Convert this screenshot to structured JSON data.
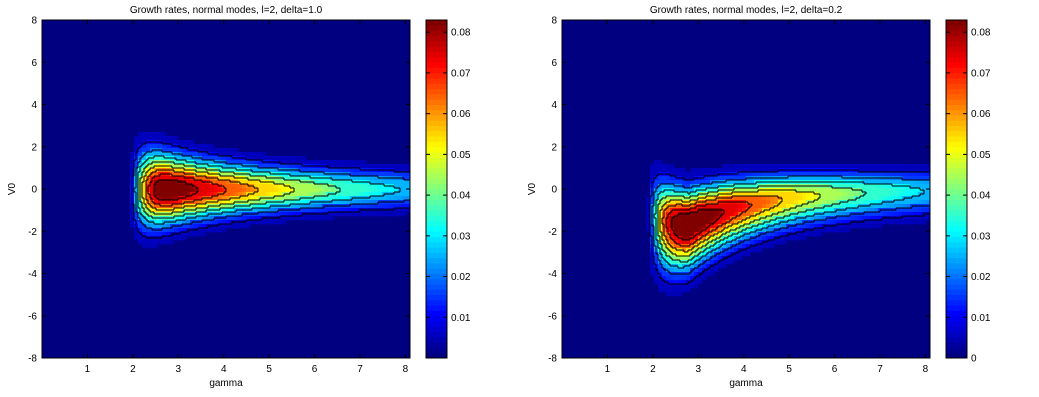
{
  "chart_data": [
    {
      "type": "contour",
      "title": "Growth rates, normal modes, l=2, delta=1.0",
      "xlabel": "gamma",
      "ylabel": "V0",
      "xlim": [
        0,
        8.1
      ],
      "ylim": [
        -8,
        8
      ],
      "xticks": [
        1,
        2,
        3,
        4,
        5,
        6,
        7,
        8
      ],
      "yticks": [
        -8,
        -6,
        -4,
        -2,
        0,
        2,
        4,
        6,
        8
      ],
      "colormap": "jet",
      "colorbar": {
        "range": [
          0,
          0.083
        ],
        "ticks": [
          0.01,
          0.02,
          0.03,
          0.04,
          0.05,
          0.06,
          0.07,
          0.08
        ],
        "tick_labels": [
          "0.01",
          "0.02",
          "0.03",
          "0.04",
          "0.05",
          "0.06",
          "0.07",
          "0.08"
        ]
      },
      "field": {
        "peak_value": 0.082,
        "peak_gamma": 2.65,
        "peak_V0": 0.0,
        "onset_gamma": 1.9,
        "decay_gamma": 4.5,
        "width_near": 2.3,
        "width_far": 1.0,
        "skew": 0.0
      },
      "contour_levels": [
        0.01,
        0.02,
        0.03,
        0.04,
        0.05,
        0.06,
        0.07,
        0.08
      ],
      "grid": false
    },
    {
      "type": "contour",
      "title": "Growth rates, normal modes, l=2, delta=0.2",
      "xlabel": "gamma",
      "ylabel": "V0",
      "xlim": [
        0,
        8.1
      ],
      "ylim": [
        -8,
        8
      ],
      "xticks": [
        1,
        2,
        3,
        4,
        5,
        6,
        7,
        8
      ],
      "yticks": [
        -8,
        -6,
        -4,
        -2,
        0,
        2,
        4,
        6,
        8
      ],
      "colormap": "jet",
      "colorbar": {
        "range": [
          0,
          0.083
        ],
        "ticks": [
          0,
          0.01,
          0.02,
          0.03,
          0.04,
          0.05,
          0.06,
          0.07,
          0.08
        ],
        "tick_labels": [
          "0",
          "0.01",
          "0.02",
          "0.03",
          "0.04",
          "0.05",
          "0.06",
          "0.07",
          "0.08"
        ]
      },
      "field": {
        "peak_value": 0.082,
        "peak_gamma": 2.75,
        "peak_V0": -1.7,
        "onset_gamma": 1.85,
        "decay_gamma": 4.5,
        "width_near": 2.3,
        "width_far": 1.0,
        "skew": 1.0
      },
      "contour_levels": [
        0.01,
        0.02,
        0.03,
        0.04,
        0.05,
        0.06,
        0.07,
        0.08
      ],
      "grid": false
    }
  ]
}
